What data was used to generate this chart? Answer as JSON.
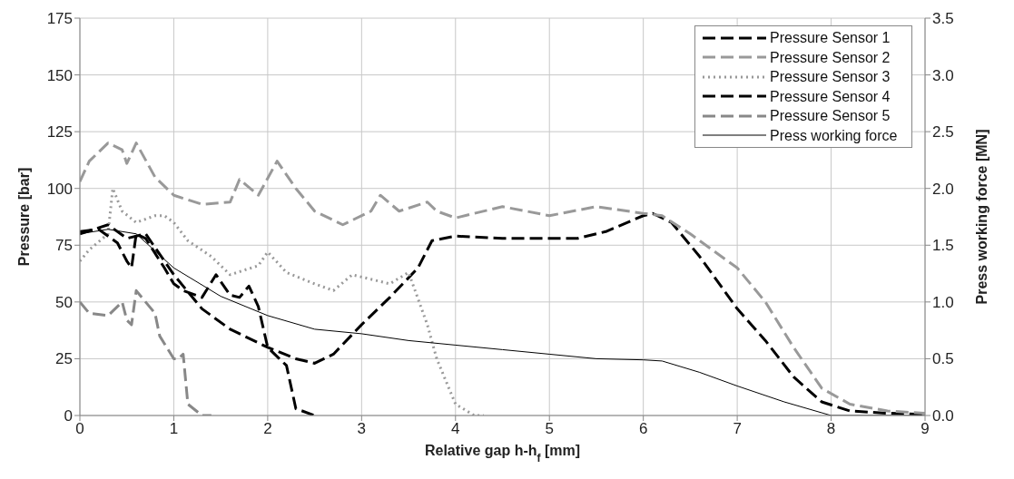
{
  "chart_data": {
    "type": "line",
    "xlabel": "Relative gap h-h$_{f}$ [mm]",
    "ylabel": "Pressure [bar]",
    "y2label": "Press working force [MN]",
    "xlim": [
      0,
      9
    ],
    "xticks": [
      0,
      1,
      2,
      3,
      4,
      5,
      6,
      7,
      8,
      9
    ],
    "ylim": [
      0,
      175
    ],
    "yticks": [
      0,
      25,
      50,
      75,
      100,
      125,
      150,
      175
    ],
    "y2lim": [
      0,
      3.5
    ],
    "y2ticks": [
      {
        "value": 0,
        "label": "0.0"
      },
      {
        "value": 0.5,
        "label": "0.5"
      },
      {
        "value": 1,
        "label": "1.0"
      },
      {
        "value": 1.5,
        "label": "1.5"
      },
      {
        "value": 2,
        "label": "2.0"
      },
      {
        "value": 2.5,
        "label": "2.5"
      },
      {
        "value": 3,
        "label": "3.0"
      },
      {
        "value": 3.5,
        "label": "3.5"
      }
    ],
    "grid": true,
    "legend": "top right",
    "marker": "none",
    "series": [
      {
        "name": "Pressure Sensor 1",
        "color": "#000000",
        "line_style": "dashed",
        "x": [
          0,
          0.3,
          0.5,
          0.7,
          1,
          1.3,
          1.6,
          2,
          2.3,
          2.5,
          2.7,
          3,
          3.3,
          3.6,
          3.75,
          4,
          4.5,
          5,
          5.3,
          5.6,
          6,
          6.1,
          6.3,
          6.6,
          7,
          7.3,
          7.6,
          7.9,
          8.2,
          8.6,
          9
        ],
        "values": [
          80,
          84,
          78,
          80,
          62,
          47,
          38,
          30,
          25,
          23,
          27,
          40,
          52,
          65,
          77,
          79,
          78,
          78,
          78,
          81,
          88,
          89,
          85,
          70,
          47,
          33,
          17,
          6,
          2,
          1,
          0.5
        ]
      },
      {
        "name": "Pressure Sensor 2",
        "color": "#999999",
        "line_style": "dashed",
        "x": [
          0,
          0.1,
          0.3,
          0.45,
          0.5,
          0.6,
          0.8,
          1,
          1.3,
          1.6,
          1.7,
          1.9,
          2.1,
          2.3,
          2.5,
          2.8,
          3.1,
          3.2,
          3.4,
          3.7,
          3.8,
          4,
          4.5,
          5,
          5.5,
          6,
          6.2,
          6.5,
          7,
          7.3,
          7.6,
          7.9,
          8.2,
          8.6,
          9
        ],
        "values": [
          103,
          112,
          120,
          117,
          111,
          120,
          105,
          97,
          93,
          94,
          104,
          97,
          112,
          100,
          90,
          84,
          90,
          97,
          90,
          94,
          90,
          87,
          92,
          88,
          92,
          89,
          88,
          80,
          65,
          50,
          30,
          12,
          5,
          2,
          1
        ]
      },
      {
        "name": "Pressure Sensor 3",
        "color": "#999999",
        "line_style": "dotted",
        "x": [
          0,
          0.1,
          0.3,
          0.35,
          0.45,
          0.6,
          0.8,
          0.9,
          1,
          1.15,
          1.4,
          1.6,
          1.9,
          2,
          2.2,
          2.5,
          2.7,
          2.9,
          3.1,
          3.3,
          3.5,
          3.7,
          3.8,
          4,
          4.2,
          4.3
        ],
        "values": [
          68,
          73,
          80,
          100,
          90,
          85,
          88,
          88,
          85,
          77,
          70,
          62,
          66,
          72,
          63,
          58,
          55,
          62,
          60,
          58,
          63,
          40,
          25,
          5,
          0,
          0
        ]
      },
      {
        "name": "Pressure Sensor 4",
        "color": "#000000",
        "line_style": "dashed",
        "x": [
          0,
          0.2,
          0.4,
          0.5,
          0.55,
          0.6,
          0.7,
          0.9,
          1,
          1.1,
          1.3,
          1.45,
          1.6,
          1.7,
          1.8,
          1.9,
          2,
          2.2,
          2.3,
          2.5
        ],
        "values": [
          81,
          82,
          76,
          68,
          65,
          80,
          78,
          65,
          58,
          55,
          52,
          62,
          53,
          52,
          57,
          48,
          30,
          22,
          3,
          0
        ]
      },
      {
        "name": "Pressure Sensor 5",
        "color": "#888888",
        "line_style": "dashed",
        "x": [
          0,
          0.1,
          0.3,
          0.45,
          0.5,
          0.55,
          0.6,
          0.8,
          0.85,
          1,
          1.05,
          1.1,
          1.15,
          1.3,
          1.4
        ],
        "values": [
          50,
          45,
          44,
          50,
          42,
          40,
          55,
          45,
          35,
          25,
          25,
          27,
          5,
          0,
          0
        ]
      },
      {
        "name": "Press working force",
        "color": "#000000",
        "line_style": "solid",
        "axis": "y2",
        "x": [
          0,
          0.3,
          0.6,
          1,
          1.5,
          2,
          2.5,
          3,
          3.5,
          4,
          4.5,
          5,
          5.5,
          6,
          6.2,
          6.6,
          7,
          7.5,
          8,
          9
        ],
        "values": [
          1.6,
          1.64,
          1.6,
          1.3,
          1.05,
          0.88,
          0.76,
          0.72,
          0.66,
          0.62,
          0.58,
          0.54,
          0.5,
          0.49,
          0.48,
          0.38,
          0.26,
          0.12,
          0,
          0
        ]
      }
    ]
  }
}
